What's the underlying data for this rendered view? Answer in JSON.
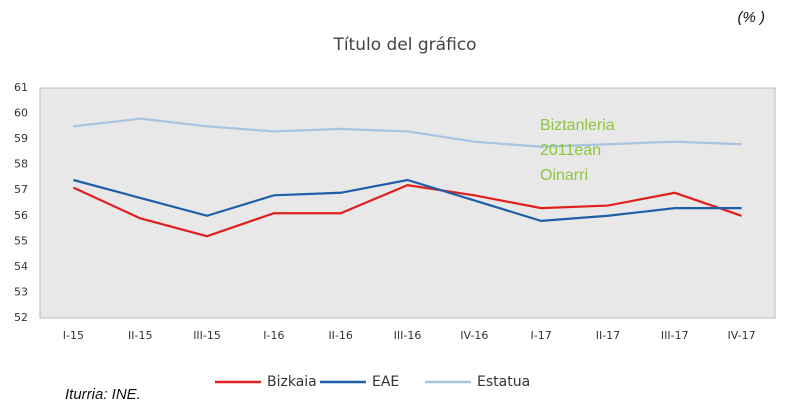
{
  "chart_data": {
    "type": "line",
    "title": "Título del gráfico",
    "unit": "(% )",
    "source": "Iturria: INE.",
    "annotation": [
      "Biztanleria",
      "2011ean",
      "Oinarri"
    ],
    "annotation_color": "#8dc63f",
    "categories": [
      "I-15",
      "II-15",
      "III-15",
      "I-16",
      "II-16",
      "III-16",
      "IV-16",
      "I-17",
      "II-17",
      "III-17",
      "IV-17"
    ],
    "series": [
      {
        "name": "Bizkaia",
        "color": "#e0201f",
        "values": [
          57.1,
          55.9,
          55.2,
          56.1,
          56.1,
          57.2,
          56.8,
          56.3,
          56.4,
          56.9,
          56.0
        ]
      },
      {
        "name": "EAE",
        "color": "#1f5fa8",
        "values": [
          57.4,
          56.7,
          56.0,
          56.8,
          56.9,
          57.4,
          56.6,
          55.8,
          56.0,
          56.3,
          56.3
        ]
      },
      {
        "name": "Estatua",
        "color": "#a8c4e0",
        "values": [
          59.5,
          59.8,
          59.5,
          59.3,
          59.4,
          59.3,
          58.9,
          58.7,
          58.8,
          58.9,
          58.8
        ]
      }
    ],
    "ylim": [
      52,
      61
    ],
    "yticks": [
      52,
      53,
      54,
      55,
      56,
      57,
      58,
      59,
      60,
      61
    ],
    "grid": false,
    "legend": "bottom"
  }
}
